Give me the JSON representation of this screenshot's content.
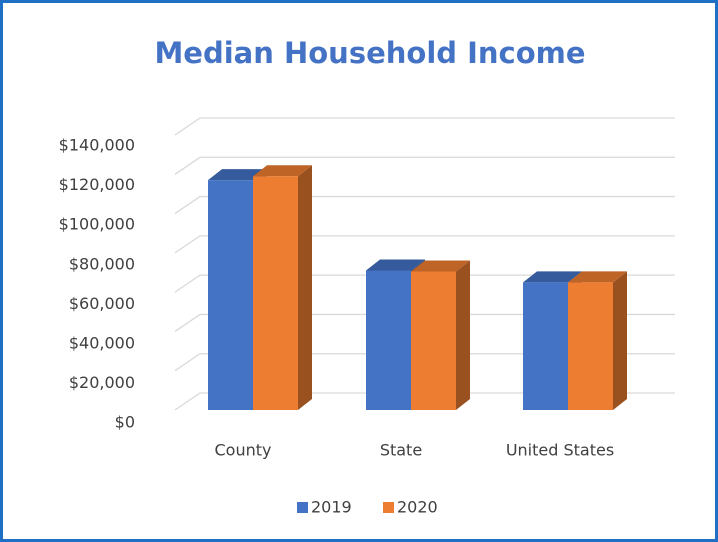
{
  "chart_data": {
    "type": "bar3d",
    "title": "Median Household Income",
    "categories": [
      "County",
      "State",
      "United States"
    ],
    "series": [
      {
        "name": "2019",
        "color": "#4472c4",
        "values": [
          117000,
          71000,
          65000
        ]
      },
      {
        "name": "2020",
        "color": "#ed7d31",
        "values": [
          119000,
          70500,
          65000
        ]
      }
    ],
    "ylim": [
      0,
      140000
    ],
    "yticks": [
      {
        "value": 0,
        "label": "$0"
      },
      {
        "value": 20000,
        "label": "$20,000"
      },
      {
        "value": 40000,
        "label": "$40,000"
      },
      {
        "value": 60000,
        "label": "$60,000"
      },
      {
        "value": 80000,
        "label": "$80,000"
      },
      {
        "value": 100000,
        "label": "$100,000"
      },
      {
        "value": 120000,
        "label": "$120,000"
      },
      {
        "value": 140000,
        "label": "$140,000"
      }
    ],
    "grid": true,
    "legend": "bottom"
  }
}
